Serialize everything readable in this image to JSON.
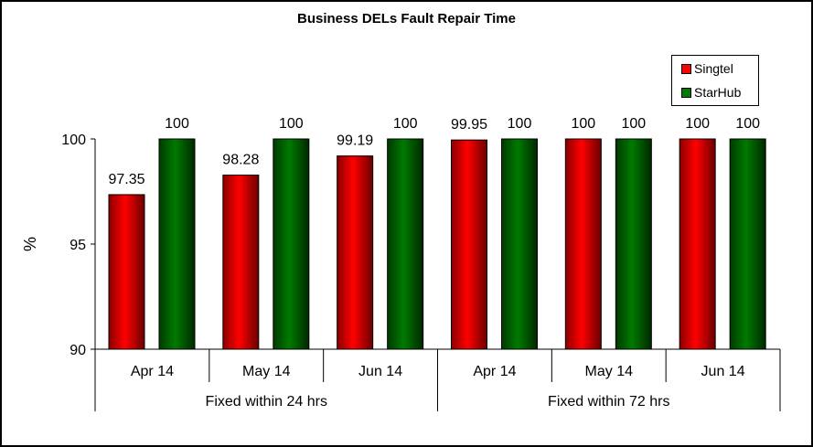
{
  "chart_data": {
    "type": "bar",
    "title": "Business DELs Fault Repair Time",
    "xlabel": "",
    "ylabel": "%",
    "ylim": [
      90,
      100
    ],
    "yticks": [
      90,
      95,
      100
    ],
    "grid": false,
    "legend_position": "top-right",
    "groups": [
      {
        "label": "Fixed within 24 hrs",
        "categories": [
          "Apr 14",
          "May 14",
          "Jun 14"
        ]
      },
      {
        "label": "Fixed within 72 hrs",
        "categories": [
          "Apr 14",
          "May 14",
          "Jun 14"
        ]
      }
    ],
    "categories": [
      "Apr 14",
      "May 14",
      "Jun 14",
      "Apr 14",
      "May 14",
      "Jun 14"
    ],
    "series": [
      {
        "name": "Singtel",
        "color": "#ff0000",
        "values": [
          97.35,
          98.28,
          99.19,
          99.95,
          100,
          100
        ]
      },
      {
        "name": "StarHub",
        "color": "#007a00",
        "values": [
          100,
          100,
          100,
          100,
          100,
          100
        ]
      }
    ],
    "data_labels": {
      "Singtel": [
        "97.35",
        "98.28",
        "99.19",
        "99.95",
        "100",
        "100"
      ],
      "StarHub": [
        "100",
        "100",
        "100",
        "100",
        "100",
        "100"
      ]
    }
  },
  "legend": {
    "items": [
      {
        "label": "Singtel",
        "color": "#ff0000"
      },
      {
        "label": "StarHub",
        "color": "#007a00"
      }
    ]
  }
}
